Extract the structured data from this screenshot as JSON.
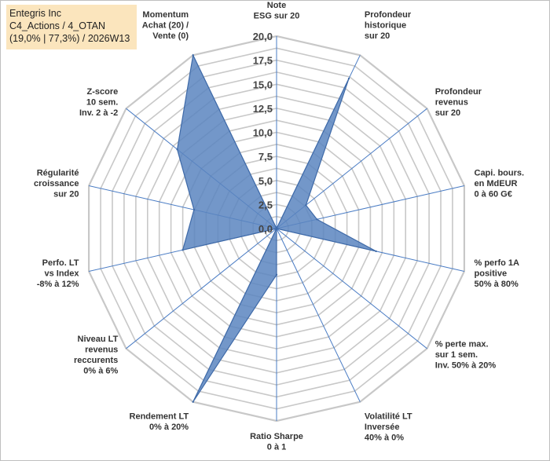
{
  "header": {
    "company": "Entegris Inc",
    "portfolio": "C4_Actions / 4_OTAN",
    "stats": "(19,0% | 77,3%) / 2026W13"
  },
  "colors": {
    "fill": "#5b85bf",
    "stroke": "#3f6aa8",
    "grid": "#c8c8c8",
    "spoke": "#4a7cc4",
    "title_bg": "#fbe5bd"
  },
  "chart_data": {
    "type": "radar",
    "title": "Entegris Inc",
    "rmax": 20,
    "ticks": [
      "0,0",
      "2,5",
      "5,0",
      "7,5",
      "10,0",
      "12,5",
      "15,0",
      "17,5",
      "20,0"
    ],
    "axes": [
      {
        "label": [
          "Note",
          "ESG sur 20"
        ],
        "value": 0.0
      },
      {
        "label": [
          "Profondeur",
          "historique",
          "sur 20"
        ],
        "value": 17.3
      },
      {
        "label": [
          "Profondeur",
          "revenus",
          "sur 20"
        ],
        "value": 3.9
      },
      {
        "label": [
          "Capi. bours.",
          "en MdEUR",
          "0 à 60 G€"
        ],
        "value": 4.3
      },
      {
        "label": [
          "% perfo 1A",
          "positive",
          "50% à 80%"
        ],
        "value": 10.6
      },
      {
        "label": [
          "% perte max.",
          "sur 1 sem.",
          "Inv. 50% à 20%"
        ],
        "value": 0.0
      },
      {
        "label": [
          "Volatilité LT",
          "Inversée",
          "40% à 0%"
        ],
        "value": 0.0
      },
      {
        "label": [
          "Ratio Sharpe",
          "0 à 1"
        ],
        "value": 4.8
      },
      {
        "label": [
          "Rendement LT",
          "0% à 20%"
        ],
        "value": 20.0
      },
      {
        "label": [
          "Niveau LT",
          "revenus",
          "reccurents",
          "0% à 6%"
        ],
        "value": 0.0
      },
      {
        "label": [
          "Perfo. LT",
          "vs Index",
          "-8% à 12%"
        ],
        "value": 10.0
      },
      {
        "label": [
          "Régularité",
          "croissance",
          "sur 20"
        ],
        "value": 8.8
      },
      {
        "label": [
          "Z-score",
          "10 sem.",
          "Inv. 2 à -2"
        ],
        "value": 13.2
      },
      {
        "label": [
          "Momentum",
          "Achat (20) /",
          "Vente (0)"
        ],
        "value": 20.0
      }
    ]
  }
}
